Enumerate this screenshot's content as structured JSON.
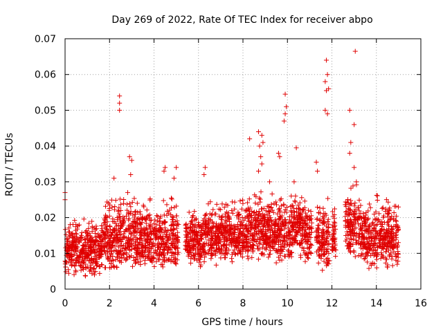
{
  "chart_data": {
    "type": "scatter",
    "title": "Day 269 of 2022, Rate Of TEC Index for receiver abpo",
    "xlabel": "GPS time / hours",
    "ylabel": "ROTI / TECUs",
    "xlim": [
      0,
      16
    ],
    "ylim": [
      0,
      0.07
    ],
    "xticks": [
      "0",
      "2",
      "4",
      "6",
      "8",
      "10",
      "12",
      "14",
      "16"
    ],
    "yticks": [
      "0",
      "0.01",
      "0.02",
      "0.03",
      "0.04",
      "0.05",
      "0.06",
      "0.07"
    ],
    "grid": true,
    "marker": "+",
    "color": "#e00000",
    "outliers": [
      [
        0.0,
        0.027
      ],
      [
        0.0,
        0.025
      ],
      [
        2.45,
        0.054
      ],
      [
        2.45,
        0.052
      ],
      [
        2.45,
        0.05
      ],
      [
        2.2,
        0.031
      ],
      [
        2.9,
        0.037
      ],
      [
        3.0,
        0.036
      ],
      [
        2.95,
        0.032
      ],
      [
        4.5,
        0.034
      ],
      [
        4.45,
        0.033
      ],
      [
        5.0,
        0.034
      ],
      [
        4.9,
        0.031
      ],
      [
        6.3,
        0.034
      ],
      [
        6.25,
        0.032
      ],
      [
        8.3,
        0.042
      ],
      [
        8.7,
        0.044
      ],
      [
        8.85,
        0.043
      ],
      [
        8.9,
        0.041
      ],
      [
        8.75,
        0.04
      ],
      [
        8.8,
        0.037
      ],
      [
        8.7,
        0.033
      ],
      [
        8.85,
        0.035
      ],
      [
        9.2,
        0.03
      ],
      [
        9.6,
        0.038
      ],
      [
        9.65,
        0.037
      ],
      [
        9.9,
        0.0545
      ],
      [
        9.95,
        0.051
      ],
      [
        9.9,
        0.049
      ],
      [
        9.85,
        0.047
      ],
      [
        10.4,
        0.0395
      ],
      [
        10.3,
        0.03
      ],
      [
        11.3,
        0.0355
      ],
      [
        11.35,
        0.033
      ],
      [
        11.75,
        0.064
      ],
      [
        11.8,
        0.06
      ],
      [
        11.7,
        0.058
      ],
      [
        11.85,
        0.056
      ],
      [
        11.75,
        0.0555
      ],
      [
        11.7,
        0.05
      ],
      [
        11.8,
        0.049
      ],
      [
        12.8,
        0.05
      ],
      [
        12.85,
        0.041
      ],
      [
        12.8,
        0.038
      ],
      [
        13.05,
        0.0665
      ],
      [
        13.0,
        0.046
      ],
      [
        13.0,
        0.034
      ],
      [
        13.1,
        0.03
      ]
    ],
    "bands": [
      {
        "x": [
          0.0,
          1.7
        ],
        "min": 0.003,
        "max": 0.021
      },
      {
        "x": [
          1.7,
          2.4
        ],
        "min": 0.004,
        "max": 0.027
      },
      {
        "x": [
          2.4,
          3.3
        ],
        "min": 0.003,
        "max": 0.028
      },
      {
        "x": [
          3.3,
          4.3
        ],
        "min": 0.004,
        "max": 0.026
      },
      {
        "x": [
          4.3,
          5.1
        ],
        "min": 0.004,
        "max": 0.028
      },
      {
        "x": [
          5.4,
          6.2
        ],
        "min": 0.005,
        "max": 0.024
      },
      {
        "x": [
          6.2,
          6.9
        ],
        "min": 0.006,
        "max": 0.026
      },
      {
        "x": [
          6.9,
          7.9
        ],
        "min": 0.007,
        "max": 0.026
      },
      {
        "x": [
          7.9,
          8.5
        ],
        "min": 0.007,
        "max": 0.028
      },
      {
        "x": [
          8.5,
          9.4
        ],
        "min": 0.007,
        "max": 0.028
      },
      {
        "x": [
          9.4,
          10.2
        ],
        "min": 0.006,
        "max": 0.028
      },
      {
        "x": [
          10.2,
          10.8
        ],
        "min": 0.008,
        "max": 0.03
      },
      {
        "x": [
          10.8,
          11.1
        ],
        "min": 0.005,
        "max": 0.027
      },
      {
        "x": [
          11.3,
          11.9
        ],
        "min": 0.004,
        "max": 0.027
      },
      {
        "x": [
          12.0,
          12.2
        ],
        "min": 0.007,
        "max": 0.025
      },
      {
        "x": [
          12.6,
          13.3
        ],
        "min": 0.007,
        "max": 0.03
      },
      {
        "x": [
          13.3,
          14.0
        ],
        "min": 0.005,
        "max": 0.026
      },
      {
        "x": [
          14.0,
          15.0
        ],
        "min": 0.005,
        "max": 0.027
      }
    ]
  }
}
